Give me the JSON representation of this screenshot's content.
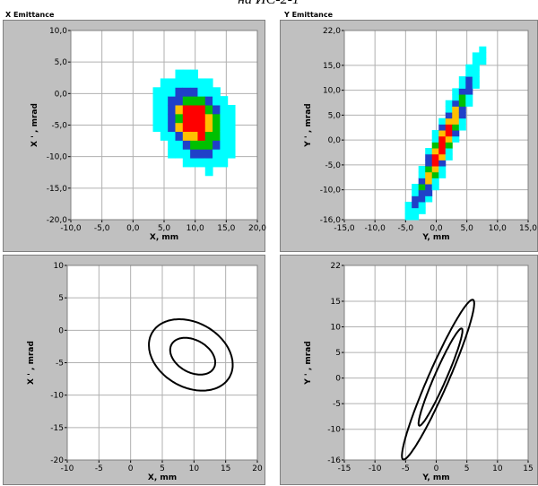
{
  "caption": "на ИС-2-1",
  "panels": {
    "x_emittance_title": "X Emittance",
    "y_emittance_title": "Y Emittance"
  },
  "colors": {
    "frame": "#c0c0c0",
    "plot_bg": "#ffffff",
    "grid": "#b0b0b0",
    "cyan": "#00ffff",
    "blue": "#2040c8",
    "green": "#00c000",
    "yellow": "#ffc000",
    "red": "#ff0000",
    "contour": "#000000"
  },
  "chart_data": [
    {
      "id": "x_density",
      "type": "heatmap",
      "title": "X Emittance",
      "xlabel": "X, mm",
      "ylabel": "X ' , mrad",
      "xlim": [
        -10,
        20
      ],
      "ylim": [
        -20,
        10
      ],
      "xticks": [
        "-10,0",
        "-5,0",
        "0,0",
        "5,0",
        "10,0",
        "15,0",
        "20,0"
      ],
      "yticks": [
        "10,0",
        "5,0",
        "0,0",
        "-5,0",
        "-10,0",
        "-15,0",
        "-20,0"
      ],
      "grid": true,
      "legend": "none",
      "distribution": {
        "center_x": 10,
        "center_xp": -4.5,
        "sigma_x": 3.0,
        "sigma_xp": 3.5,
        "correlation": -0.25,
        "cell_x": 1.2,
        "cell_xp": 1.4,
        "level_cutoffs": [
          0.08,
          0.3,
          0.5,
          0.65,
          0.8
        ]
      }
    },
    {
      "id": "y_density",
      "type": "heatmap",
      "title": "Y Emittance",
      "xlabel": "Y, mm",
      "ylabel": "Y ' , mrad",
      "xlim": [
        -15,
        15
      ],
      "ylim": [
        -16,
        22
      ],
      "xticks": [
        "-15,0",
        "-10,0",
        "-5,0",
        "0,0",
        "5,0",
        "10,0",
        "15,0"
      ],
      "yticks": [
        "22,0",
        "15,0",
        "10,0",
        "5,0",
        "0,0",
        "-5,0",
        "-10,0",
        "-16,0"
      ],
      "grid": true,
      "legend": "none",
      "distribution": {
        "center_y": 1,
        "center_yp": -1,
        "sigma_y": 3.0,
        "sigma_yp": 8.5,
        "correlation": 0.95,
        "cell_y": 1.1,
        "cell_yp": 1.2,
        "level_cutoffs": [
          0.08,
          0.3,
          0.5,
          0.65,
          0.8
        ]
      }
    },
    {
      "id": "x_ellipses",
      "type": "line",
      "xlabel": "X, mm",
      "ylabel": "X ' , mrad",
      "xlim": [
        -10,
        20
      ],
      "ylim": [
        -20,
        10
      ],
      "xticks": [
        "-10",
        "-5",
        "0",
        "5",
        "10",
        "15",
        "20"
      ],
      "yticks": [
        "10",
        "5",
        "0",
        "-5",
        "-10",
        "-15",
        "-20"
      ],
      "grid": true,
      "series": [
        {
          "center": [
            9.5,
            -3.8
          ],
          "semi_axes": [
            7.0,
            5.0
          ],
          "angle_deg": -28
        },
        {
          "center": [
            9.8,
            -4.0
          ],
          "semi_axes": [
            3.8,
            2.5
          ],
          "angle_deg": -28
        }
      ]
    },
    {
      "id": "y_ellipses",
      "type": "line",
      "xlabel": "Y, mm",
      "ylabel": "Y ' , mrad",
      "xlim": [
        -15,
        15
      ],
      "ylim": [
        -16,
        22
      ],
      "xticks": [
        "-15",
        "-10",
        "-5",
        "0",
        "5",
        "10",
        "15"
      ],
      "yticks": [
        "22",
        "15",
        "10",
        "5",
        "0",
        "-5",
        "-10",
        "-16"
      ],
      "grid": true,
      "series": [
        {
          "center": [
            0.3,
            -0.3
          ],
          "semi_axes": [
            16.6,
            1.7
          ],
          "angle_deg": 70
        },
        {
          "center": [
            0.7,
            0.2
          ],
          "semi_axes": [
            10.1,
            1.0
          ],
          "angle_deg": 70
        }
      ]
    }
  ]
}
